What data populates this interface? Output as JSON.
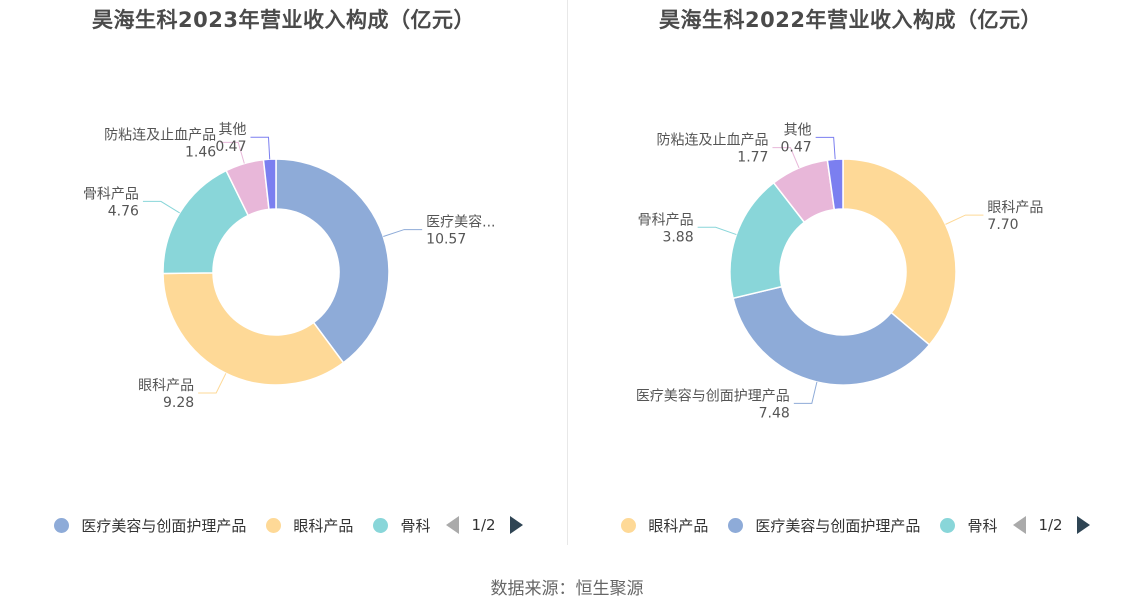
{
  "chart_data": [
    {
      "type": "pie",
      "title": "昊海生科2023年营业收入构成（亿元）",
      "slices": [
        {
          "name": "医疗美容与创面护理产品",
          "label": "医疗美容...",
          "value": 10.57,
          "value_label": "10.57",
          "color": "#8eabd8"
        },
        {
          "name": "眼科产品",
          "label": "眼科产品",
          "value": 9.28,
          "value_label": "9.28",
          "color": "#fed997"
        },
        {
          "name": "骨科产品",
          "label": "骨科产品",
          "value": 4.76,
          "value_label": "4.76",
          "color": "#89d6d9"
        },
        {
          "name": "防粘连及止血产品",
          "label": "防粘连及止血产品",
          "value": 1.46,
          "value_label": "1.46",
          "color": "#e8b7d9"
        },
        {
          "name": "其他",
          "label": "其他",
          "value": 0.47,
          "value_label": "0.47",
          "color": "#7b7ff0"
        }
      ],
      "legend": {
        "items": [
          {
            "label": "医疗美容与创面护理产品",
            "color": "#8eabd8"
          },
          {
            "label": "眼科产品",
            "color": "#fed997"
          },
          {
            "label": "骨科",
            "color": "#89d6d9"
          }
        ],
        "page": "1/2",
        "position": "bottom"
      }
    },
    {
      "type": "pie",
      "title": "昊海生科2022年营业收入构成（亿元）",
      "slices": [
        {
          "name": "眼科产品",
          "label": "眼科产品",
          "value": 7.7,
          "value_label": "7.70",
          "color": "#fed997"
        },
        {
          "name": "医疗美容与创面护理产品",
          "label": "医疗美容与创面护理产品",
          "value": 7.48,
          "value_label": "7.48",
          "color": "#8eabd8"
        },
        {
          "name": "骨科产品",
          "label": "骨科产品",
          "value": 3.88,
          "value_label": "3.88",
          "color": "#89d6d9"
        },
        {
          "name": "防粘连及止血产品",
          "label": "防粘连及止血产品",
          "value": 1.77,
          "value_label": "1.77",
          "color": "#e8b7d9"
        },
        {
          "name": "其他",
          "label": "其他",
          "value": 0.47,
          "value_label": "0.47",
          "color": "#7b7ff0"
        }
      ],
      "legend": {
        "items": [
          {
            "label": "眼科产品",
            "color": "#fed997"
          },
          {
            "label": "医疗美容与创面护理产品",
            "color": "#8eabd8"
          },
          {
            "label": "骨科",
            "color": "#89d6d9"
          }
        ],
        "page": "1/2",
        "position": "bottom"
      }
    }
  ],
  "source": "数据来源：恒生聚源"
}
